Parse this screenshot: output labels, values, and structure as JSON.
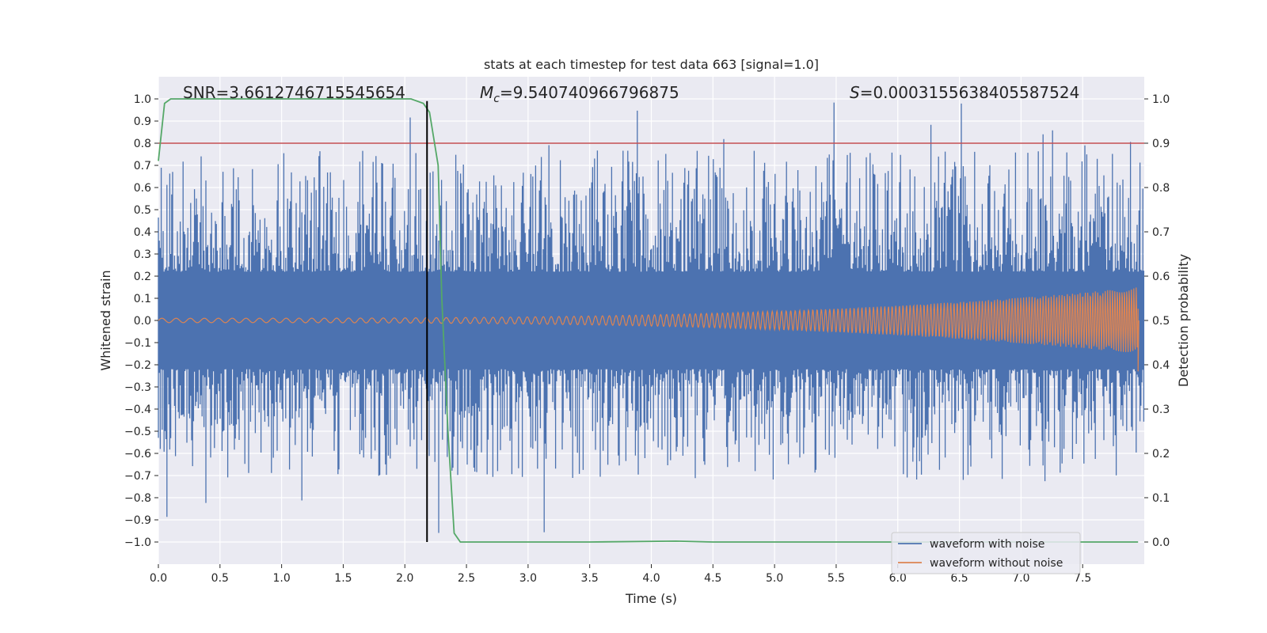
{
  "chart_data": {
    "type": "line",
    "title": "stats at each timestep for test data 663 [signal=1.0]",
    "xlabel": "Time (s)",
    "ylabel": "Whitened strain",
    "ylabel_right": "Detection probability",
    "xlim": [
      0.0,
      8.0
    ],
    "ylim": [
      -1.1,
      1.1
    ],
    "ylim_right": [
      -0.05,
      1.05
    ],
    "x_ticks": [
      0.0,
      0.5,
      1.0,
      1.5,
      2.0,
      2.5,
      3.0,
      3.5,
      4.0,
      4.5,
      5.0,
      5.5,
      6.0,
      6.5,
      7.0,
      7.5
    ],
    "x_tick_labels": [
      "0.0",
      "0.5",
      "1.0",
      "1.5",
      "2.0",
      "2.5",
      "3.0",
      "3.5",
      "4.0",
      "4.5",
      "5.0",
      "5.5",
      "6.0",
      "6.5",
      "7.0",
      "7.5"
    ],
    "y_ticks": [
      -1.0,
      -0.9,
      -0.8,
      -0.7,
      -0.6,
      -0.5,
      -0.4,
      -0.3,
      -0.2,
      -0.1,
      0.0,
      0.1,
      0.2,
      0.3,
      0.4,
      0.5,
      0.6,
      0.7,
      0.8,
      0.9,
      1.0
    ],
    "y_tick_labels": [
      "−1.0",
      "−0.9",
      "−0.8",
      "−0.7",
      "−0.6",
      "−0.5",
      "−0.4",
      "−0.3",
      "−0.2",
      "−0.1",
      "0.0",
      "0.1",
      "0.2",
      "0.3",
      "0.4",
      "0.5",
      "0.6",
      "0.7",
      "0.8",
      "0.9",
      "1.0"
    ],
    "y_right_ticks": [
      0.0,
      0.1,
      0.2,
      0.3,
      0.4,
      0.5,
      0.6,
      0.7,
      0.8,
      0.9,
      1.0
    ],
    "y_right_tick_labels": [
      "0.0",
      "0.1",
      "0.2",
      "0.3",
      "0.4",
      "0.5",
      "0.6",
      "0.7",
      "0.8",
      "0.9",
      "1.0"
    ],
    "annotations": {
      "snr": "SNR=3.6612746715545654",
      "mc_symbol": "M",
      "mc_sub": "c",
      "mc_value": "=9.540740966796875",
      "s_symbol": "S",
      "s_value": "=0.0003155638405587524"
    },
    "threshold_line": {
      "axis": "right",
      "value": 0.9,
      "color": "#c44e52"
    },
    "vertical_marker": {
      "x": 2.18,
      "ymin": -1.0,
      "ymax": 0.99,
      "color": "#000000"
    },
    "detection_probability": {
      "name": "detection probability",
      "axis": "right",
      "color": "#55a868",
      "x": [
        0.0,
        0.05,
        0.1,
        0.15,
        2.05,
        2.15,
        2.2,
        2.27,
        2.3,
        2.35,
        2.4,
        2.45,
        2.5,
        3.5,
        4.2,
        4.5,
        5.5,
        7.0,
        7.95
      ],
      "values": [
        0.86,
        0.99,
        1.0,
        1.0,
        1.0,
        0.99,
        0.97,
        0.85,
        0.55,
        0.25,
        0.02,
        0.0,
        0.0,
        0.0,
        0.002,
        0.0,
        0.0,
        0.0,
        0.0
      ]
    },
    "series": [
      {
        "name": "waveform with noise",
        "color": "#4c72b0",
        "typical_amplitude": 0.19,
        "peak_max": 0.99,
        "peak_min": -0.98
      },
      {
        "name": "waveform without noise",
        "color": "#dd8452",
        "start_amplitude": 0.01,
        "end_amplitude": 0.15,
        "end_time": 7.95
      }
    ],
    "legend": {
      "position": "lower-right",
      "entries": [
        {
          "label": "waveform with noise",
          "color": "#4c72b0"
        },
        {
          "label": "waveform without noise",
          "color": "#dd8452"
        }
      ]
    },
    "grid": true
  },
  "colors": {
    "plot_background": "#eaeaf2",
    "grid": "#ffffff",
    "text": "#262626"
  }
}
